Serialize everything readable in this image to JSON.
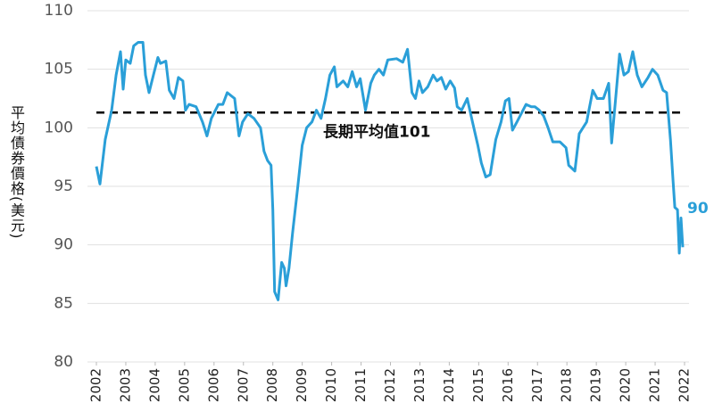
{
  "chart_data": {
    "type": "line",
    "y_label": "平均債券價格(美元)",
    "x": [
      2002.0,
      2002.12,
      2002.3,
      2002.52,
      2002.67,
      2002.82,
      2002.91,
      2003.0,
      2003.15,
      2003.27,
      2003.42,
      2003.58,
      2003.67,
      2003.79,
      2003.94,
      2004.09,
      2004.18,
      2004.36,
      2004.48,
      2004.64,
      2004.79,
      2004.94,
      2005.03,
      2005.15,
      2005.39,
      2005.61,
      2005.76,
      2005.91,
      2006.15,
      2006.3,
      2006.45,
      2006.7,
      2006.85,
      2006.97,
      2007.15,
      2007.36,
      2007.58,
      2007.7,
      2007.82,
      2007.94,
      2008.0,
      2008.06,
      2008.18,
      2008.3,
      2008.39,
      2008.45,
      2008.55,
      2008.67,
      2008.85,
      2009.0,
      2009.15,
      2009.33,
      2009.48,
      2009.64,
      2009.79,
      2009.94,
      2010.09,
      2010.18,
      2010.39,
      2010.55,
      2010.7,
      2010.85,
      2010.97,
      2011.15,
      2011.33,
      2011.45,
      2011.61,
      2011.76,
      2011.91,
      2012.21,
      2012.42,
      2012.58,
      2012.73,
      2012.85,
      2012.97,
      2013.09,
      2013.27,
      2013.45,
      2013.58,
      2013.73,
      2013.88,
      2014.03,
      2014.18,
      2014.27,
      2014.42,
      2014.61,
      2014.79,
      2014.97,
      2015.09,
      2015.24,
      2015.39,
      2015.58,
      2015.76,
      2015.91,
      2016.03,
      2016.15,
      2016.3,
      2016.61,
      2016.79,
      2016.91,
      2017.06,
      2017.21,
      2017.36,
      2017.52,
      2017.76,
      2017.97,
      2018.06,
      2018.27,
      2018.42,
      2018.67,
      2018.88,
      2019.03,
      2019.24,
      2019.42,
      2019.52,
      2019.64,
      2019.79,
      2019.94,
      2020.09,
      2020.24,
      2020.39,
      2020.55,
      2020.76,
      2020.91,
      2021.09,
      2021.27,
      2021.39,
      2021.52,
      2021.61,
      2021.67,
      2021.76,
      2021.82,
      2021.88,
      2021.94
    ],
    "values": [
      96.7,
      95.2,
      99,
      101.5,
      104.5,
      106.5,
      103.3,
      105.8,
      105.5,
      107,
      107.3,
      107.3,
      104.5,
      103,
      104.5,
      106,
      105.5,
      105.7,
      103.2,
      102.5,
      104.3,
      104,
      101.5,
      102,
      101.8,
      100.5,
      99.3,
      100.8,
      102,
      102,
      103,
      102.5,
      99.3,
      100.5,
      101.2,
      100.8,
      100,
      98,
      97.2,
      96.8,
      93,
      86,
      85.3,
      88.5,
      88,
      86.5,
      88,
      91,
      95,
      98.5,
      100,
      100.5,
      101.5,
      100.8,
      102.5,
      104.5,
      105.2,
      103.5,
      104,
      103.5,
      104.8,
      103.5,
      104.2,
      101.5,
      103.8,
      104.5,
      105,
      104.5,
      105.8,
      105.9,
      105.6,
      106.7,
      103,
      102.5,
      104,
      103,
      103.5,
      104.5,
      104,
      104.3,
      103.3,
      104,
      103.4,
      101.8,
      101.5,
      102.5,
      100.5,
      98.5,
      97,
      95.8,
      96,
      99,
      100.5,
      102.3,
      102.5,
      99.8,
      100.5,
      102,
      101.8,
      101.8,
      101.5,
      101,
      100,
      98.8,
      98.8,
      98.3,
      96.8,
      96.3,
      99.5,
      100.5,
      103.2,
      102.5,
      102.5,
      103.8,
      98.7,
      102,
      106.3,
      104.5,
      104.8,
      106.5,
      104.5,
      103.5,
      104.3,
      105,
      104.5,
      103.2,
      103,
      99,
      95.5,
      93.2,
      93,
      89.3,
      92.3,
      89.8
    ],
    "color": "#2a9fd8",
    "end_label": "90",
    "average": {
      "value": 101.3,
      "label": "長期平均值101"
    },
    "xlim": [
      2002,
      2022
    ],
    "xticks": [
      2002,
      2003,
      2004,
      2005,
      2006,
      2007,
      2008,
      2009,
      2010,
      2011,
      2012,
      2013,
      2014,
      2015,
      2016,
      2017,
      2018,
      2019,
      2020,
      2021,
      2022
    ],
    "ylim": [
      80,
      110
    ],
    "yticks": [
      80,
      85,
      90,
      95,
      100,
      105,
      110
    ],
    "grid": true
  }
}
